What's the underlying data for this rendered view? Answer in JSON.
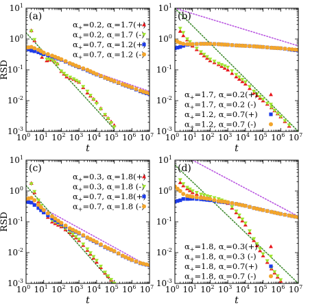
{
  "chart_data": [
    {
      "type": "scatter",
      "panel_label": "(a)",
      "xlabel": "t",
      "ylabel": "RSD",
      "x_scale": "log",
      "y_scale": "log",
      "xlim": [
        1,
        10000000
      ],
      "ylim": [
        0.001,
        10
      ],
      "x_ticks": [
        "10",
        "10",
        "10",
        "10",
        "10",
        "10",
        "10",
        "10"
      ],
      "x_tick_exponents": [
        "0",
        "1",
        "2",
        "3",
        "4",
        "5",
        "6",
        "7"
      ],
      "y_ticks": [
        "10",
        "10",
        "10",
        "10",
        "10"
      ],
      "y_tick_exponents": [
        "-3",
        "-2",
        "-1",
        "0",
        "1"
      ],
      "legend_position": "top-right",
      "series": [
        {
          "name": "α+=0.2, α−=1.7(+)",
          "legend": {
            "a": "α",
            "s1": "+",
            "v1": "=0.2, ",
            "b": "α",
            "s2": "-",
            "v2": "=1.7(+)"
          },
          "color": "#e8141b",
          "marker": "triangle",
          "x": [
            2,
            3,
            5,
            8,
            15,
            30,
            60,
            100,
            200,
            500,
            1000,
            3000,
            10000,
            30000,
            100000
          ],
          "y": [
            1.9,
            0.9,
            0.4,
            0.26,
            0.2,
            0.22,
            0.16,
            0.09,
            0.06,
            0.05,
            0.04,
            0.018,
            0.009,
            0.0035,
            0.0016
          ]
        },
        {
          "name": "α+=0.2, α−=1.7 (-)",
          "legend": {
            "a": "α",
            "s1": "+",
            "v1": "=0.2, ",
            "b": "α",
            "s2": "-",
            "v2": "=1.7 (-)"
          },
          "color": "#9ee42e",
          "marker": "triangle-down",
          "x": [
            2,
            3,
            5,
            8,
            15,
            30,
            60,
            100,
            200,
            500,
            1000,
            3000,
            10000,
            30000,
            100000
          ],
          "y": [
            1.8,
            0.95,
            0.45,
            0.3,
            0.22,
            0.21,
            0.15,
            0.09,
            0.065,
            0.05,
            0.04,
            0.02,
            0.008,
            0.0035,
            0.0014
          ]
        },
        {
          "name": "α+=0.7, α−=1.2(+)",
          "legend": {
            "a": "α",
            "s1": "+",
            "v1": "=0.7, ",
            "b": "α",
            "s2": "-",
            "v2": "=1.2(+)"
          },
          "color": "#1c3be8",
          "marker": "square",
          "x": [
            1,
            2,
            3,
            5,
            10,
            30,
            100,
            300,
            1000,
            3000,
            10000,
            30000,
            100000,
            300000,
            1000000,
            3000000,
            10000000
          ],
          "y": [
            0.5,
            0.42,
            0.4,
            0.37,
            0.32,
            0.27,
            0.21,
            0.16,
            0.12,
            0.095,
            0.07,
            0.055,
            0.042,
            0.033,
            0.026,
            0.02,
            0.016
          ]
        },
        {
          "name": "α+=0.7, α−=1.2 (-)",
          "legend": {
            "a": "α",
            "s1": "+",
            "v1": "=0.7, ",
            "b": "α",
            "s2": "-",
            "v2": "=1.2 (-)"
          },
          "color": "#f2a52c",
          "marker": "circle",
          "x": [
            1,
            2,
            3,
            5,
            10,
            30,
            100,
            300,
            1000,
            3000,
            10000,
            30000,
            100000,
            300000,
            1000000,
            3000000,
            10000000
          ],
          "y": [
            0.52,
            0.55,
            0.5,
            0.45,
            0.36,
            0.29,
            0.22,
            0.165,
            0.125,
            0.1,
            0.072,
            0.056,
            0.043,
            0.034,
            0.027,
            0.021,
            0.017
          ]
        }
      ],
      "reference_lines": [
        {
          "color": "#b854e0",
          "points": [
            [
              1,
              0.5
            ],
            [
              10000000,
              0.02
            ]
          ]
        },
        {
          "color": "#3e8a2e",
          "points": [
            [
              1,
              1.6
            ],
            [
              100000,
              0.0012
            ]
          ]
        }
      ]
    },
    {
      "type": "scatter",
      "panel_label": "(b)",
      "xlabel": "t",
      "ylabel": "",
      "x_scale": "log",
      "y_scale": "log",
      "xlim": [
        1,
        10000000
      ],
      "ylim": [
        0.001,
        10
      ],
      "x_ticks": [
        "10",
        "10",
        "10",
        "10",
        "10",
        "10",
        "10",
        "10"
      ],
      "x_tick_exponents": [
        "0",
        "1",
        "2",
        "3",
        "4",
        "5",
        "6",
        "7"
      ],
      "y_ticks": [
        "10",
        "10",
        "10",
        "10",
        "10"
      ],
      "y_tick_exponents": [
        "-3",
        "-2",
        "-1",
        "0",
        "1"
      ],
      "legend_position": "bottom-left",
      "series": [
        {
          "name": "α+=1.7, α−=0.2(+)",
          "legend": {
            "a": "α",
            "s1": "+",
            "v1": "=1.7, ",
            "b": "α",
            "s2": "-",
            "v2": "=0.2(+)"
          },
          "color": "#e8141b",
          "marker": "triangle",
          "x": [
            2,
            3,
            5,
            10,
            30,
            100,
            300,
            1000,
            3000,
            10000,
            30000,
            100000,
            300000,
            1000000,
            3000000
          ],
          "y": [
            1.8,
            1.3,
            0.95,
            0.6,
            0.35,
            0.2,
            0.15,
            0.1,
            0.06,
            0.035,
            0.018,
            0.01,
            0.006,
            0.003,
            0.0015
          ]
        },
        {
          "name": "α+=1.7, α−=0.2 (-)",
          "legend": {
            "a": "α",
            "s1": "+",
            "v1": "=1.7, ",
            "b": "α",
            "s2": "-",
            "v2": "=0.2 (-)"
          },
          "color": "#9ee42e",
          "marker": "triangle-down",
          "x": [
            2,
            3,
            5,
            10,
            30,
            100,
            300,
            1000,
            3000,
            10000,
            30000,
            100000,
            300000,
            1000000,
            3000000
          ],
          "y": [
            2.2,
            1.6,
            1.0,
            0.65,
            0.38,
            0.22,
            0.16,
            0.12,
            0.07,
            0.04,
            0.02,
            0.011,
            0.006,
            0.003,
            0.0016
          ]
        },
        {
          "name": "α+=1.2, α−=0.7(+)",
          "legend": {
            "a": "α",
            "s1": "+",
            "v1": "=1.2, ",
            "b": "α",
            "s2": "-",
            "v2": "=0.7(+)"
          },
          "color": "#1c3be8",
          "marker": "square",
          "x": [
            1,
            2,
            3,
            5,
            10,
            30,
            100,
            300,
            1000,
            3000,
            10000,
            30000,
            100000,
            300000,
            1000000,
            3000000,
            10000000
          ],
          "y": [
            0.5,
            0.55,
            0.6,
            0.65,
            0.68,
            0.7,
            0.7,
            0.68,
            0.65,
            0.62,
            0.6,
            0.58,
            0.55,
            0.52,
            0.5,
            0.46,
            0.42
          ]
        },
        {
          "name": "α+=1.2, α−=0.7 (-)",
          "legend": {
            "a": "α",
            "s1": "+",
            "v1": "=1.2, ",
            "b": "α",
            "s2": "-",
            "v2": "=0.7 (-)"
          },
          "color": "#f2a52c",
          "marker": "circle",
          "x": [
            1,
            2,
            3,
            5,
            10,
            30,
            100,
            300,
            1000,
            3000,
            10000,
            30000,
            100000,
            300000,
            1000000,
            3000000,
            10000000
          ],
          "y": [
            0.9,
            0.75,
            0.7,
            0.68,
            0.68,
            0.7,
            0.7,
            0.68,
            0.65,
            0.62,
            0.6,
            0.58,
            0.55,
            0.52,
            0.5,
            0.47,
            0.44
          ]
        }
      ],
      "reference_lines": [
        {
          "color": "#b854e0",
          "points": [
            [
              1,
              10
            ],
            [
              10000000,
              0.6
            ]
          ]
        },
        {
          "color": "#3e8a2e",
          "points": [
            [
              1,
              10
            ],
            [
              10000000,
              0.001
            ]
          ]
        }
      ]
    },
    {
      "type": "scatter",
      "panel_label": "(c)",
      "xlabel": "t",
      "ylabel": "RSD",
      "x_scale": "log",
      "y_scale": "log",
      "xlim": [
        1,
        10000000
      ],
      "ylim": [
        0.001,
        10
      ],
      "x_ticks": [
        "10",
        "10",
        "10",
        "10",
        "10",
        "10",
        "10",
        "10"
      ],
      "x_tick_exponents": [
        "0",
        "1",
        "2",
        "3",
        "4",
        "5",
        "6",
        "7"
      ],
      "y_ticks": [
        "10",
        "10",
        "10",
        "10",
        "10"
      ],
      "y_tick_exponents": [
        "-3",
        "-2",
        "-1",
        "0",
        "1"
      ],
      "legend_position": "top-right",
      "series": [
        {
          "name": "α+=0.3, α−=1.8(+)",
          "legend": {
            "a": "α",
            "s1": "+",
            "v1": "=0.3, ",
            "b": "α",
            "s2": "-",
            "v2": "=1.8(+)"
          },
          "color": "#e8141b",
          "marker": "triangle",
          "x": [
            2,
            3,
            5,
            10,
            30,
            100,
            300,
            1000,
            3000,
            10000,
            30000,
            100000
          ],
          "y": [
            1.8,
            0.9,
            0.45,
            0.2,
            0.1,
            0.07,
            0.045,
            0.025,
            0.012,
            0.005,
            0.0022,
            0.001
          ]
        },
        {
          "name": "α+=0.3, α−=1.8 (-)",
          "legend": {
            "a": "α",
            "s1": "+",
            "v1": "=0.3, ",
            "b": "α",
            "s2": "-",
            "v2": "=1.8 (-)"
          },
          "color": "#9ee42e",
          "marker": "triangle-down",
          "x": [
            2,
            3,
            5,
            10,
            30,
            100,
            300,
            1000,
            3000,
            10000,
            30000,
            100000
          ],
          "y": [
            1.7,
            0.95,
            0.5,
            0.22,
            0.11,
            0.075,
            0.048,
            0.027,
            0.013,
            0.0055,
            0.0023,
            0.001
          ]
        },
        {
          "name": "α+=0.7, α−=1.8(+)",
          "legend": {
            "a": "α",
            "s1": "+",
            "v1": "=0.7, ",
            "b": "α",
            "s2": "-",
            "v2": "=1.8(+)"
          },
          "color": "#1c3be8",
          "marker": "square",
          "x": [
            1,
            2,
            3,
            5,
            10,
            30,
            100,
            300,
            1000,
            3000,
            10000,
            30000,
            100000,
            300000,
            1000000,
            3000000,
            10000000
          ],
          "y": [
            0.45,
            0.42,
            0.35,
            0.28,
            0.2,
            0.13,
            0.085,
            0.058,
            0.042,
            0.03,
            0.021,
            0.015,
            0.011,
            0.0078,
            0.0057,
            0.0045,
            0.0038
          ]
        },
        {
          "name": "α+=0.7, α−=1.8 (-)",
          "legend": {
            "a": "α",
            "s1": "+",
            "v1": "=0.7, ",
            "b": "α",
            "s2": "-",
            "v2": "=1.8 (-)"
          },
          "color": "#f2a52c",
          "marker": "circle",
          "x": [
            1,
            2,
            3,
            5,
            10,
            30,
            100,
            300,
            1000,
            3000,
            10000,
            30000,
            100000,
            300000,
            1000000,
            3000000,
            10000000
          ],
          "y": [
            0.55,
            0.6,
            0.5,
            0.36,
            0.24,
            0.15,
            0.092,
            0.062,
            0.044,
            0.031,
            0.022,
            0.0155,
            0.0112,
            0.008,
            0.0058,
            0.0046,
            0.0039
          ]
        }
      ],
      "reference_lines": [
        {
          "color": "#b854e0",
          "points": [
            [
              1,
              0.55
            ],
            [
              10000000,
              0.0035
            ]
          ]
        },
        {
          "color": "#3e8a2e",
          "points": [
            [
              1,
              1.5
            ],
            [
              100000,
              0.0009
            ]
          ]
        }
      ]
    },
    {
      "type": "scatter",
      "panel_label": "(d)",
      "xlabel": "t",
      "ylabel": "",
      "x_scale": "log",
      "y_scale": "log",
      "xlim": [
        1,
        10000000
      ],
      "ylim": [
        0.001,
        10
      ],
      "x_ticks": [
        "10",
        "10",
        "10",
        "10",
        "10",
        "10",
        "10",
        "10"
      ],
      "x_tick_exponents": [
        "0",
        "1",
        "2",
        "3",
        "4",
        "5",
        "6",
        "7"
      ],
      "y_ticks": [
        "10",
        "10",
        "10",
        "10",
        "10"
      ],
      "y_tick_exponents": [
        "-3",
        "-2",
        "-1",
        "0",
        "1"
      ],
      "legend_position": "bottom-left",
      "series": [
        {
          "name": "α+=1.8, α−=0.3(+)",
          "legend": {
            "a": "α",
            "s1": "+",
            "v1": "=1.8, ",
            "b": "α",
            "s2": "-",
            "v2": "=0.3(+)"
          },
          "color": "#e8141b",
          "marker": "triangle",
          "x": [
            2,
            3,
            5,
            10,
            30,
            100,
            300,
            1000,
            3000,
            10000,
            30000,
            100000,
            300000,
            1000000
          ],
          "y": [
            1.9,
            1.5,
            1.2,
            0.9,
            0.7,
            0.6,
            0.5,
            0.4,
            0.2,
            0.08,
            0.025,
            0.008,
            0.003,
            0.0012
          ]
        },
        {
          "name": "α+=1.8, α−=0.3 (-)",
          "legend": {
            "a": "α",
            "s1": "+",
            "v1": "=1.8, ",
            "b": "α",
            "s2": "-",
            "v2": "=0.3 (-)"
          },
          "color": "#9ee42e",
          "marker": "triangle-down",
          "x": [
            2,
            3,
            5,
            10,
            30,
            100,
            300,
            1000,
            3000,
            10000,
            30000,
            100000,
            300000,
            1000000
          ],
          "y": [
            2.3,
            1.7,
            1.3,
            1.0,
            0.78,
            0.65,
            0.55,
            0.42,
            0.22,
            0.09,
            0.028,
            0.009,
            0.0032,
            0.0013
          ]
        },
        {
          "name": "α+=1.8, α−=0.7(+)",
          "legend": {
            "a": "α",
            "s1": "+",
            "v1": "=1.8, ",
            "b": "α",
            "s2": "-",
            "v2": "=0.7(+)"
          },
          "color": "#1c3be8",
          "marker": "square",
          "x": [
            1,
            2,
            3,
            5,
            10,
            30,
            100,
            300,
            1000,
            3000,
            10000,
            30000,
            100000,
            300000,
            1000000,
            3000000,
            10000000
          ],
          "y": [
            0.45,
            0.5,
            0.55,
            0.55,
            0.56,
            0.54,
            0.5,
            0.45,
            0.42,
            0.38,
            0.33,
            0.28,
            0.24,
            0.21,
            0.18,
            0.16,
            0.14
          ]
        },
        {
          "name": "α+=1.8, α−=0.7 (-)",
          "legend": {
            "a": "α",
            "s1": "+",
            "v1": "=1.8, ",
            "b": "α",
            "s2": "-",
            "v2": "=0.7 (-)"
          },
          "color": "#f2a52c",
          "marker": "circle",
          "x": [
            1,
            2,
            3,
            5,
            10,
            30,
            100,
            300,
            1000,
            3000,
            10000,
            30000,
            100000,
            300000,
            1000000,
            3000000,
            10000000
          ],
          "y": [
            1.4,
            1.0,
            0.8,
            0.7,
            0.65,
            0.6,
            0.55,
            0.47,
            0.43,
            0.38,
            0.33,
            0.28,
            0.24,
            0.21,
            0.18,
            0.16,
            0.14
          ]
        }
      ],
      "reference_lines": [
        {
          "color": "#b854e0",
          "points": [
            [
              10,
              10
            ],
            [
              10000000,
              0.15
            ]
          ]
        },
        {
          "color": "#3e8a2e",
          "points": [
            [
              1,
              7
            ],
            [
              10000000,
              0.001
            ]
          ]
        }
      ]
    }
  ]
}
